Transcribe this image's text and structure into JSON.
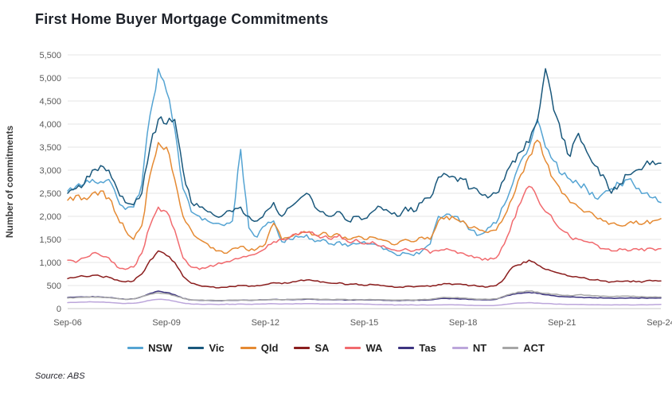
{
  "chart_data": {
    "type": "line",
    "title": "First Home Buyer Mortgage Commitments",
    "ylabel": "Number of commitments",
    "xlabel": "",
    "source": "Source: ABS",
    "ylim": [
      0,
      5500
    ],
    "yticks": [
      0,
      500,
      1000,
      1500,
      2000,
      2500,
      3000,
      3500,
      4000,
      4500,
      5000,
      5500
    ],
    "x_unit": "quarterly estimates from Sep-2006 to Sep-2024",
    "xtick_labels": [
      "Sep-06",
      "Sep-09",
      "Sep-12",
      "Sep-15",
      "Sep-18",
      "Sep-21",
      "Sep-24"
    ],
    "xtick_indices": [
      0,
      12,
      24,
      36,
      48,
      60,
      72
    ],
    "grid": "horizontal",
    "legend_position": "bottom",
    "series": [
      {
        "name": "NSW",
        "color": "#55A4D3",
        "values": [
          2550,
          2650,
          2700,
          2800,
          2750,
          2800,
          2400,
          2150,
          2200,
          2700,
          4200,
          5200,
          4700,
          3900,
          2600,
          2100,
          2000,
          1900,
          1850,
          1800,
          1900,
          3450,
          1750,
          1550,
          1800,
          1900,
          1450,
          1500,
          1550,
          1600,
          1450,
          1500,
          1400,
          1450,
          1350,
          1400,
          1450,
          1400,
          1350,
          1250,
          1150,
          1200,
          1150,
          1250,
          1400,
          2000,
          2050,
          2000,
          1900,
          1700,
          1600,
          1750,
          1850,
          2250,
          2700,
          3200,
          3500,
          4100,
          3500,
          3200,
          2900,
          2800,
          2700,
          2600,
          2400,
          2500,
          2600,
          2700,
          2800,
          2600,
          2500,
          2400,
          2300
        ]
      },
      {
        "name": "Vic",
        "color": "#1A587C",
        "values": [
          2500,
          2600,
          2700,
          3000,
          3100,
          3000,
          2600,
          2300,
          2250,
          2500,
          3500,
          4100,
          4000,
          4100,
          3000,
          2300,
          2200,
          2100,
          2000,
          2050,
          2100,
          2200,
          2000,
          1900,
          2100,
          2300,
          2000,
          2200,
          2350,
          2500,
          2200,
          2100,
          2000,
          2100,
          1900,
          2000,
          1950,
          2100,
          2200,
          2100,
          2000,
          2200,
          2100,
          2300,
          2400,
          2850,
          2900,
          2850,
          2800,
          2600,
          2500,
          2400,
          2500,
          2800,
          3200,
          3400,
          3600,
          4050,
          5200,
          4300,
          3700,
          3300,
          3800,
          3400,
          3100,
          2900,
          2500,
          2700,
          2900,
          3000,
          3100,
          3200,
          3150
        ]
      },
      {
        "name": "Qld",
        "color": "#E58A33",
        "values": [
          2350,
          2450,
          2400,
          2500,
          2550,
          2400,
          2000,
          1700,
          1500,
          1800,
          2900,
          3600,
          3500,
          2800,
          2000,
          1700,
          1500,
          1400,
          1250,
          1200,
          1300,
          1350,
          1250,
          1300,
          1400,
          1850,
          1500,
          1550,
          1600,
          1650,
          1600,
          1650,
          1550,
          1600,
          1500,
          1550,
          1500,
          1550,
          1500,
          1450,
          1400,
          1500,
          1450,
          1550,
          1500,
          1900,
          2000,
          1950,
          1900,
          1750,
          1700,
          1650,
          1700,
          2000,
          2400,
          2900,
          3300,
          3650,
          3200,
          2800,
          2500,
          2300,
          2200,
          2100,
          2000,
          1900,
          1850,
          1800,
          1850,
          1900,
          1850,
          1900,
          1950
        ]
      },
      {
        "name": "SA",
        "color": "#8B1E1E",
        "values": [
          650,
          680,
          700,
          720,
          700,
          680,
          620,
          580,
          600,
          750,
          1050,
          1250,
          1150,
          1000,
          700,
          550,
          500,
          480,
          450,
          460,
          480,
          500,
          480,
          500,
          520,
          560,
          540,
          560,
          600,
          620,
          600,
          580,
          550,
          560,
          520,
          540,
          500,
          520,
          500,
          480,
          460,
          480,
          470,
          490,
          480,
          520,
          540,
          530,
          520,
          500,
          480,
          470,
          500,
          650,
          900,
          950,
          1050,
          950,
          850,
          800,
          750,
          700,
          680,
          650,
          620,
          600,
          580,
          590,
          600,
          580,
          590,
          600,
          600
        ]
      },
      {
        "name": "WA",
        "color": "#F16A6E",
        "values": [
          1050,
          1000,
          1100,
          1200,
          1150,
          1100,
          900,
          850,
          900,
          1200,
          1800,
          2200,
          2100,
          1700,
          1100,
          900,
          850,
          900,
          950,
          1000,
          1050,
          1100,
          1150,
          1200,
          1300,
          1450,
          1500,
          1550,
          1600,
          1650,
          1600,
          1550,
          1500,
          1600,
          1450,
          1500,
          1400,
          1450,
          1350,
          1300,
          1250,
          1300,
          1250,
          1300,
          1200,
          1250,
          1300,
          1250,
          1200,
          1150,
          1100,
          1050,
          1100,
          1400,
          1900,
          2300,
          2650,
          2400,
          2100,
          1900,
          1700,
          1550,
          1500,
          1450,
          1400,
          1300,
          1250,
          1300,
          1250,
          1300,
          1250,
          1300,
          1300
        ]
      },
      {
        "name": "Tas",
        "color": "#3D3480",
        "values": [
          240,
          250,
          250,
          260,
          250,
          240,
          220,
          200,
          210,
          260,
          330,
          380,
          350,
          300,
          220,
          190,
          180,
          180,
          170,
          175,
          180,
          185,
          180,
          185,
          190,
          200,
          190,
          195,
          200,
          205,
          200,
          195,
          190,
          195,
          185,
          190,
          185,
          190,
          185,
          180,
          175,
          180,
          178,
          185,
          190,
          210,
          220,
          215,
          210,
          200,
          195,
          190,
          200,
          260,
          310,
          330,
          350,
          330,
          300,
          280,
          260,
          250,
          245,
          240,
          235,
          230,
          225,
          228,
          230,
          228,
          230,
          228,
          230
        ]
      },
      {
        "name": "NT",
        "color": "#BCA6DB",
        "values": [
          130,
          135,
          140,
          145,
          140,
          135,
          120,
          110,
          115,
          140,
          180,
          200,
          190,
          160,
          120,
          100,
          95,
          95,
          90,
          92,
          95,
          98,
          95,
          98,
          100,
          105,
          100,
          102,
          105,
          108,
          105,
          102,
          100,
          102,
          98,
          100,
          95,
          92,
          88,
          85,
          80,
          82,
          80,
          82,
          78,
          80,
          82,
          80,
          78,
          72,
          68,
          65,
          70,
          90,
          110,
          120,
          130,
          120,
          110,
          100,
          95,
          90,
          88,
          85,
          82,
          80,
          78,
          80,
          82,
          80,
          82,
          85,
          90
        ]
      },
      {
        "name": "ACT",
        "color": "#A6A6A6",
        "values": [
          230,
          240,
          245,
          250,
          245,
          240,
          220,
          200,
          210,
          260,
          310,
          340,
          320,
          280,
          220,
          190,
          185,
          180,
          175,
          178,
          182,
          185,
          180,
          185,
          190,
          200,
          195,
          200,
          205,
          210,
          205,
          200,
          195,
          200,
          192,
          196,
          190,
          195,
          192,
          188,
          185,
          190,
          188,
          195,
          200,
          230,
          240,
          235,
          230,
          215,
          205,
          200,
          210,
          270,
          330,
          360,
          380,
          360,
          330,
          310,
          290,
          280,
          300,
          290,
          280,
          270,
          260,
          265,
          270,
          260,
          255,
          250,
          250
        ]
      }
    ]
  }
}
